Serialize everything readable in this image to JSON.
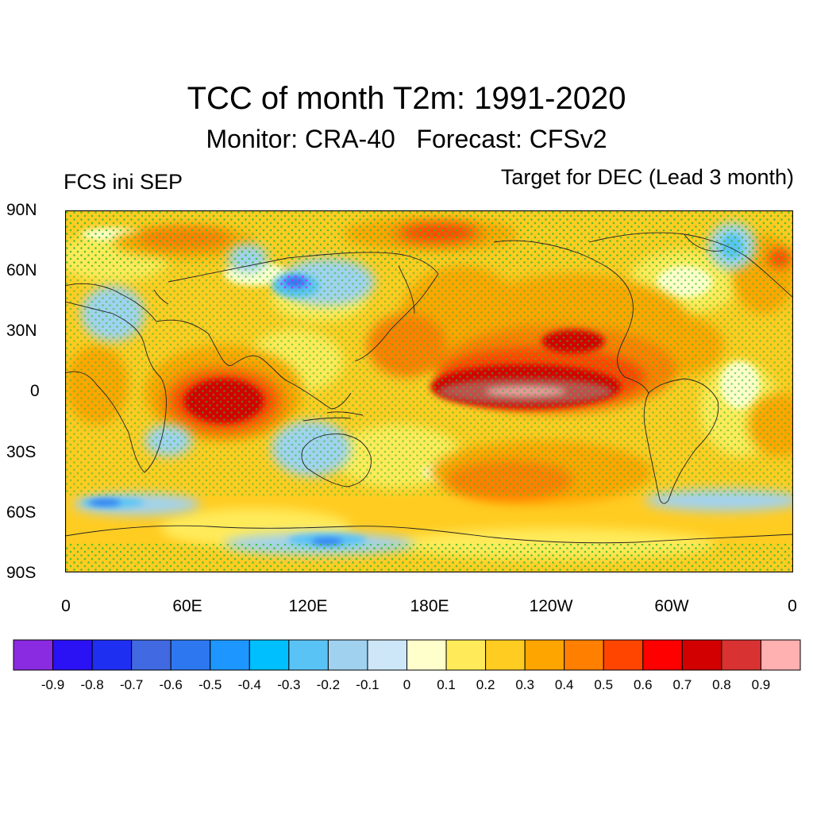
{
  "header": {
    "title": "TCC of month T2m: 1991-2020",
    "subtitle": "Monitor: CRA-40   Forecast: CFSv2",
    "left_note": "FCS ini SEP",
    "right_note": "Target for DEC (Lead 3 month)"
  },
  "map": {
    "projection": "cylindrical equidistant, centered on 180E",
    "lat_labels": [
      "90N",
      "60N",
      "30N",
      "0",
      "30S",
      "60S",
      "90S"
    ],
    "lon_labels": [
      "0",
      "60E",
      "120E",
      "180E",
      "120W",
      "60W",
      "0"
    ],
    "stippling_color": "#2fbf2f",
    "coastline_color": "#222222"
  },
  "colorbar": {
    "colors": [
      "#8a2be2",
      "#2a12f5",
      "#1f2ff2",
      "#4169e1",
      "#2d78f0",
      "#1e96ff",
      "#00bfff",
      "#5ac3f5",
      "#a0d2f0",
      "#cde7f8",
      "#ffffcc",
      "#ffeb5a",
      "#ffcc22",
      "#ffa500",
      "#ff7f00",
      "#ff4500",
      "#ff0000",
      "#d20000",
      "#d93232",
      "#ffb0b0"
    ],
    "labels": [
      "-0.9",
      "-0.8",
      "-0.7",
      "-0.6",
      "-0.5",
      "-0.4",
      "-0.3",
      "-0.2",
      "-0.1",
      "0",
      "0.1",
      "0.2",
      "0.3",
      "0.4",
      "0.5",
      "0.6",
      "0.7",
      "0.8",
      "0.9"
    ]
  }
}
